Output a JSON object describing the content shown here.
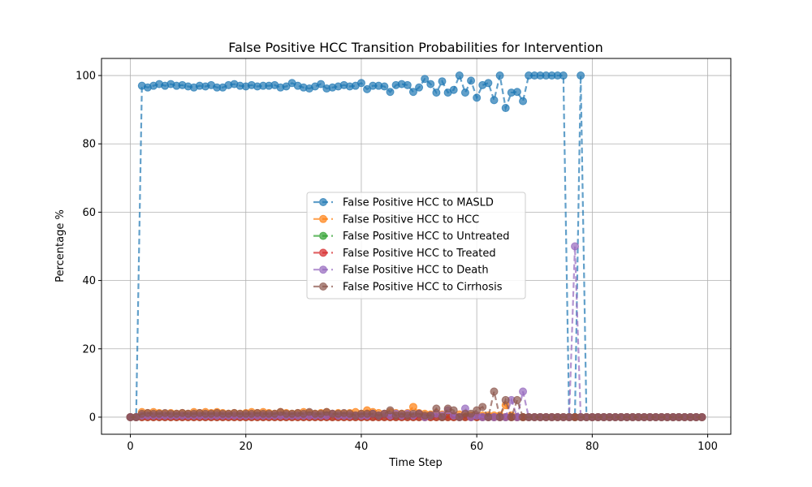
{
  "chart_data": {
    "type": "line",
    "title": "False Positive HCC Transition Probabilities for Intervention",
    "xlabel": "Time Step",
    "ylabel": "Percentage %",
    "xlim": [
      -5,
      104
    ],
    "ylim": [
      -5,
      105
    ],
    "xticks": [
      "0",
      "20",
      "40",
      "60",
      "80",
      "100"
    ],
    "yticks": [
      "0",
      "20",
      "40",
      "60",
      "80",
      "100"
    ],
    "grid": true,
    "legend_position": "center",
    "line_style": "dashed",
    "marker": "circle",
    "x": [
      0,
      1,
      2,
      3,
      4,
      5,
      6,
      7,
      8,
      9,
      10,
      11,
      12,
      13,
      14,
      15,
      16,
      17,
      18,
      19,
      20,
      21,
      22,
      23,
      24,
      25,
      26,
      27,
      28,
      29,
      30,
      31,
      32,
      33,
      34,
      35,
      36,
      37,
      38,
      39,
      40,
      41,
      42,
      43,
      44,
      45,
      46,
      47,
      48,
      49,
      50,
      51,
      52,
      53,
      54,
      55,
      56,
      57,
      58,
      59,
      60,
      61,
      62,
      63,
      64,
      65,
      66,
      67,
      68,
      69,
      70,
      71,
      72,
      73,
      74,
      75,
      76,
      77,
      78,
      79,
      80,
      81,
      82,
      83,
      84,
      85,
      86,
      87,
      88,
      89,
      90,
      91,
      92,
      93,
      94,
      95,
      96,
      97,
      98,
      99
    ],
    "series": [
      {
        "name": "False Positive HCC to MASLD",
        "color": "#1f77b4",
        "values": [
          0,
          0,
          97,
          96.5,
          97,
          97.5,
          97,
          97.5,
          97,
          97.2,
          96.8,
          96.5,
          97,
          96.8,
          97.2,
          96.5,
          96.5,
          97.2,
          97.5,
          97,
          96.8,
          97.2,
          96.8,
          97,
          97,
          97.2,
          96.5,
          96.8,
          97.8,
          97,
          96.5,
          96.2,
          96.8,
          97.5,
          96.2,
          96.5,
          96.8,
          97.2,
          96.8,
          97,
          97.8,
          96,
          97,
          97,
          96.8,
          95.2,
          97.2,
          97.5,
          97.2,
          95.2,
          96.5,
          99,
          97.5,
          95,
          98.3,
          95,
          95.8,
          100,
          95,
          98.5,
          93.5,
          97.2,
          97.8,
          92.8,
          100,
          90.5,
          95,
          95.2,
          92.5,
          100,
          100,
          100,
          100,
          100,
          100,
          100,
          0,
          0,
          100,
          0,
          0,
          0,
          0,
          0,
          0,
          0,
          0,
          0,
          0,
          0,
          0,
          0,
          0,
          0,
          0,
          0,
          0,
          0,
          0,
          0
        ]
      },
      {
        "name": "False Positive HCC to HCC",
        "color": "#ff7f0e",
        "values": [
          0,
          0,
          1.5,
          1.2,
          1.5,
          1.2,
          1,
          1.2,
          1,
          1.2,
          1,
          1.5,
          1.2,
          1.5,
          1.2,
          1.5,
          1.2,
          1,
          1.2,
          1,
          1.2,
          1.5,
          1.2,
          1.5,
          1.2,
          1,
          1.5,
          1.2,
          1,
          1.2,
          1.5,
          1.2,
          1,
          1.2,
          1.5,
          1,
          1.2,
          1,
          1.2,
          1.5,
          1,
          2,
          1.5,
          1.2,
          1,
          1.5,
          1.2,
          1,
          1.2,
          3,
          1.2,
          1,
          0.8,
          1.2,
          0.8,
          0.5,
          0.5,
          0.8,
          0.5,
          0.5,
          0.5,
          0.5,
          0.5,
          0.5,
          0.5,
          3.5,
          0.5,
          0,
          0,
          0,
          0,
          0,
          0,
          0,
          0,
          0,
          0,
          0,
          0,
          0,
          0,
          0,
          0,
          0,
          0,
          0,
          0,
          0,
          0,
          0,
          0,
          0,
          0,
          0,
          0,
          0,
          0,
          0,
          0,
          0
        ]
      },
      {
        "name": "False Positive HCC to Untreated",
        "color": "#2ca02c",
        "values": [
          0,
          0,
          0,
          0,
          0,
          0,
          0,
          0,
          0,
          0,
          0,
          0,
          0,
          0,
          0,
          0,
          0,
          0,
          0,
          0,
          0,
          0,
          0,
          0,
          0,
          0,
          0,
          0,
          0,
          0,
          0,
          0,
          0,
          0,
          0,
          0,
          0,
          0,
          0,
          0,
          0,
          0,
          0,
          0,
          0,
          0,
          0,
          0,
          0,
          0,
          0,
          0,
          0,
          0,
          0,
          0,
          0,
          0,
          0,
          0,
          0,
          0,
          0,
          0,
          0,
          0,
          0,
          0,
          0,
          0,
          0,
          0,
          0,
          0,
          0,
          0,
          0,
          0,
          0,
          0,
          0,
          0,
          0,
          0,
          0,
          0,
          0,
          0,
          0,
          0,
          0,
          0,
          0,
          0,
          0,
          0,
          0,
          0,
          0,
          0
        ]
      },
      {
        "name": "False Positive HCC to Treated",
        "color": "#d62728",
        "values": [
          0,
          0,
          0,
          0,
          0,
          0,
          0,
          0,
          0,
          0,
          0,
          0,
          0,
          0,
          0,
          0,
          0,
          0,
          0,
          0,
          0,
          0,
          0,
          0,
          0,
          0,
          0,
          0,
          0,
          0,
          0,
          0,
          0,
          0,
          0,
          0,
          0,
          0,
          0,
          0,
          0,
          0,
          0,
          0,
          0,
          0,
          0,
          0,
          0,
          0,
          0,
          0,
          0,
          0,
          0,
          0,
          0,
          0,
          0,
          0,
          0,
          0,
          0,
          0,
          0,
          0,
          0,
          0,
          0,
          0,
          0,
          0,
          0,
          0,
          0,
          0,
          0,
          0,
          0,
          0,
          0,
          0,
          0,
          0,
          0,
          0,
          0,
          0,
          0,
          0,
          0,
          0,
          0,
          0,
          0,
          0,
          0,
          0,
          0,
          0
        ]
      },
      {
        "name": "False Positive HCC to Death",
        "color": "#9467bd",
        "values": [
          0,
          0,
          0.5,
          0.5,
          0.5,
          0.5,
          0.5,
          0.5,
          0.5,
          0.5,
          0.5,
          0.5,
          0.5,
          0.5,
          0.5,
          0.5,
          0.5,
          0.5,
          0.5,
          0.5,
          0.5,
          0.5,
          0.5,
          0.5,
          0.5,
          0.5,
          0.5,
          0.5,
          0.5,
          0.5,
          0.5,
          0.5,
          0.5,
          0.5,
          0.5,
          1,
          0.5,
          0.5,
          0.5,
          0.5,
          0.5,
          0.5,
          1,
          0.5,
          1,
          0.5,
          1,
          0.5,
          1,
          0.5,
          1,
          0,
          0.5,
          1,
          0.5,
          2,
          0.5,
          0,
          2.5,
          0,
          0.5,
          0,
          0,
          0,
          0,
          0,
          5,
          0,
          7.5,
          0,
          0,
          0,
          0,
          0,
          0,
          0,
          0,
          50,
          0,
          0,
          0,
          0,
          0,
          0,
          0,
          0,
          0,
          0,
          0,
          0,
          0,
          0,
          0,
          0,
          0,
          0,
          0,
          0,
          0,
          0
        ]
      },
      {
        "name": "False Positive HCC to Cirrhosis",
        "color": "#8c564b",
        "values": [
          0,
          0,
          1,
          1.2,
          1,
          1,
          1.2,
          1,
          1,
          1.2,
          1,
          1,
          1.2,
          1,
          1,
          1.2,
          1,
          1,
          1.2,
          1,
          1,
          1,
          1.2,
          1,
          1,
          1,
          1.5,
          1,
          1,
          1.2,
          1,
          1.5,
          1,
          1,
          1.5,
          1,
          1,
          1.2,
          1,
          0.5,
          1,
          1,
          1,
          0.5,
          1,
          2,
          0.5,
          1,
          0.5,
          1,
          1,
          0.5,
          0.5,
          2.5,
          0,
          2.5,
          2,
          0,
          1,
          1,
          2,
          3,
          0,
          7.5,
          0,
          5,
          0,
          5,
          0,
          0,
          0,
          0,
          0,
          0,
          0,
          0,
          0,
          0,
          0,
          0,
          0,
          0,
          0,
          0,
          0,
          0,
          0,
          0,
          0,
          0,
          0,
          0,
          0,
          0,
          0,
          0,
          0,
          0,
          0,
          0
        ]
      }
    ]
  }
}
